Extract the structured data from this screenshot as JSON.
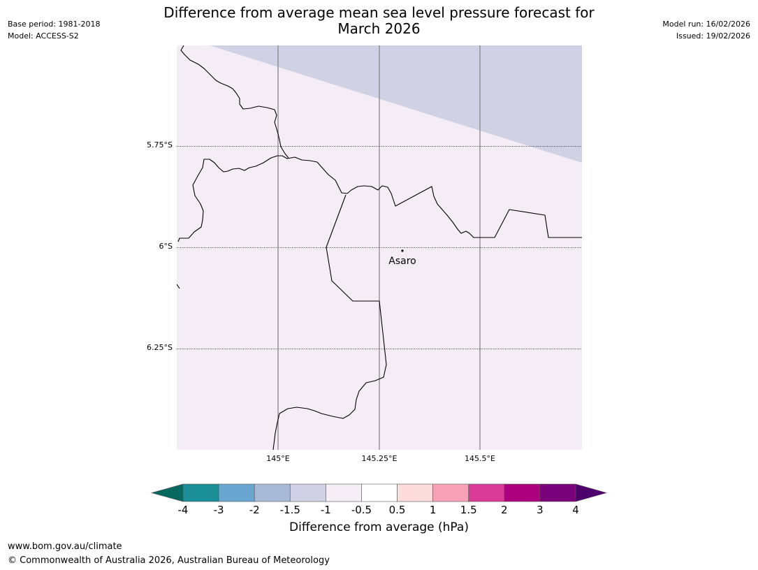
{
  "title": "Difference from average mean sea level pressure forecast for March 2026",
  "title_line1": "Difference from average mean sea level pressure forecast for",
  "title_line2": "March 2026",
  "meta": {
    "base_period": "Base period: 1981-2018",
    "model": "Model: ACCESS-S2",
    "model_run": "Model run: 16/02/2026",
    "issued": "Issued: 19/02/2026"
  },
  "map": {
    "lat_ticks": [
      "5.75°S",
      "6°S",
      "6.25°S"
    ],
    "lon_ticks": [
      "145°E",
      "145.25°E",
      "145.5°E"
    ],
    "place_label": "Asaro",
    "colors": {
      "background_fill": "#f4edf5",
      "anomaly_fill": "#d1d1e5",
      "coastline": "#000000",
      "gridline": "#7f7f7f"
    }
  },
  "colorbar": {
    "title": "Difference from average (hPa)",
    "labels": [
      "-4",
      "-3",
      "-2",
      "-1.5",
      "-1",
      "-0.5",
      "0.5",
      "1",
      "1.5",
      "2",
      "3",
      "4"
    ],
    "colors": [
      "#1a8f98",
      "#69a7d1",
      "#a8bad7",
      "#d1d1e5",
      "#f4edf5",
      "#ffffff",
      "#fddcdc",
      "#f9a2b7",
      "#da3a98",
      "#ad007f",
      "#7a037b"
    ],
    "extend_low_color": "#06685e",
    "extend_high_color": "#4d006b"
  },
  "footer": {
    "url": "www.bom.gov.au/climate",
    "copyright": "© Commonwealth of Australia 2026, Australian Bureau of Meteorology"
  }
}
